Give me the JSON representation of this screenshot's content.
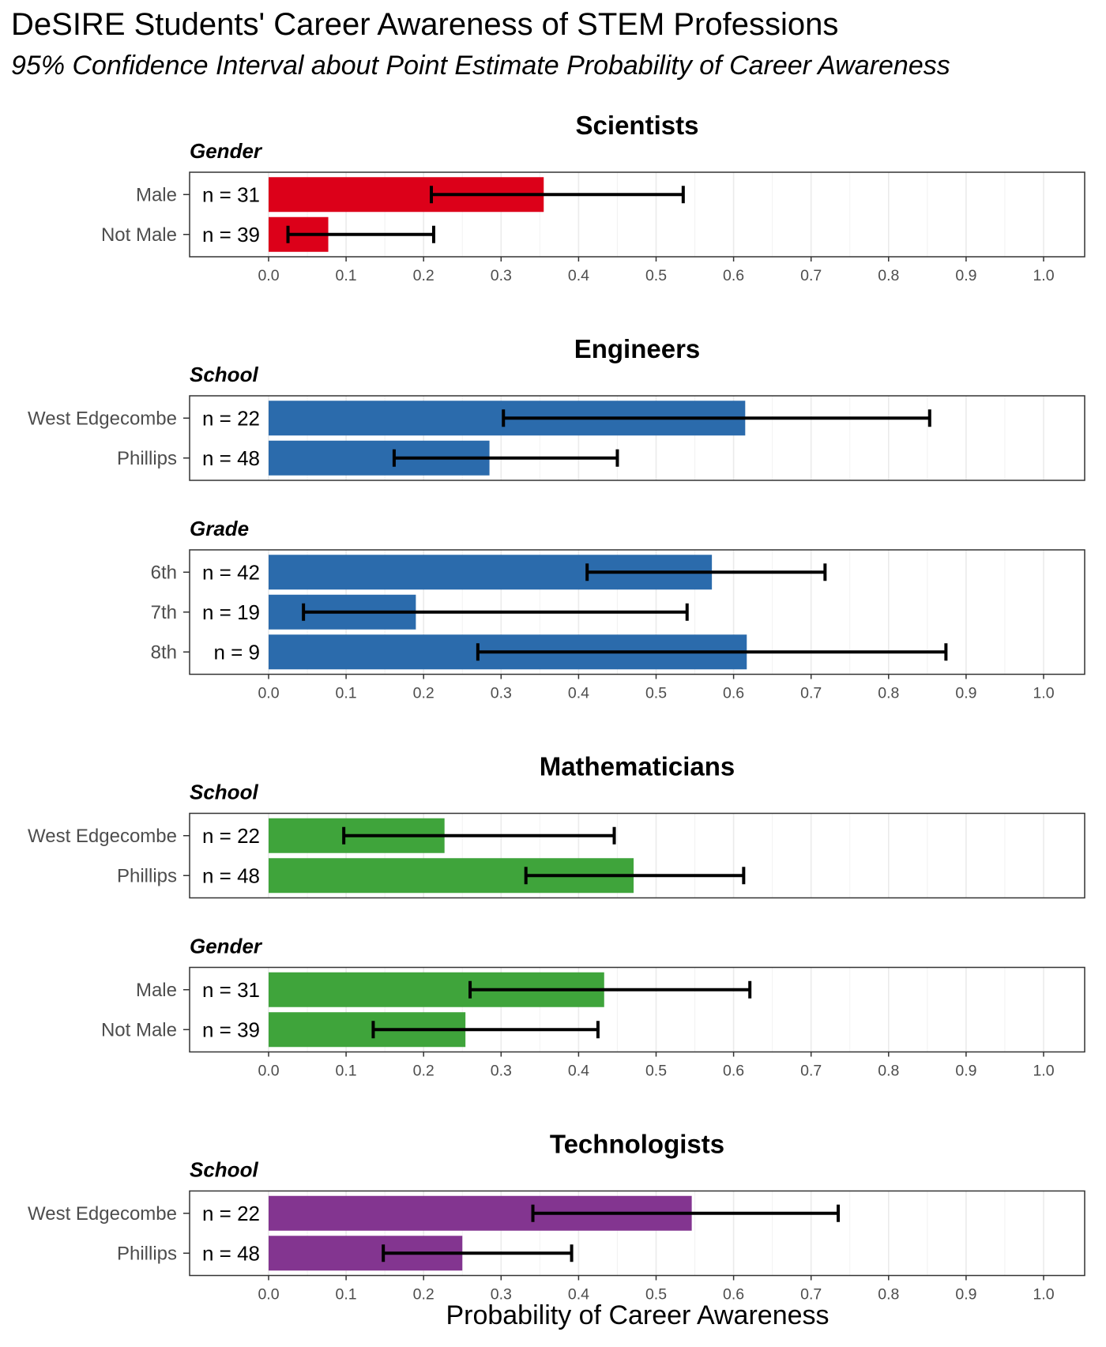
{
  "chart_data": {
    "type": "bar",
    "title": "DeSIRE Students' Career Awareness of STEM Professions",
    "subtitle": "95% Confidence Interval about Point Estimate Probability of Career Awareness",
    "xlabel": "Probability of Career Awareness",
    "xlim": [
      0,
      1.0
    ],
    "xticks": [
      "0.0",
      "0.1",
      "0.2",
      "0.3",
      "0.4",
      "0.5",
      "0.6",
      "0.7",
      "0.8",
      "0.9",
      "1.0"
    ],
    "grid": true,
    "orientation": "horizontal",
    "error_bars": "95% confidence interval",
    "sections": [
      {
        "title": "Scientists",
        "color": "#DC0019",
        "facets": [
          {
            "title": "Gender",
            "rows": [
              {
                "category": "Male",
                "n_label": "n = 31",
                "value": 0.355,
                "ci_low": 0.21,
                "ci_high": 0.535
              },
              {
                "category": "Not Male",
                "n_label": "n = 39",
                "value": 0.077,
                "ci_low": 0.025,
                "ci_high": 0.213
              }
            ]
          }
        ]
      },
      {
        "title": "Engineers",
        "color": "#2B6BAC",
        "facets": [
          {
            "title": "School",
            "rows": [
              {
                "category": "West Edgecombe",
                "n_label": "n = 22",
                "value": 0.615,
                "ci_low": 0.303,
                "ci_high": 0.853
              },
              {
                "category": "Phillips",
                "n_label": "n = 48",
                "value": 0.285,
                "ci_low": 0.162,
                "ci_high": 0.45
              }
            ]
          },
          {
            "title": "Grade",
            "rows": [
              {
                "category": "6th",
                "n_label": "n = 42",
                "value": 0.572,
                "ci_low": 0.411,
                "ci_high": 0.718
              },
              {
                "category": "7th",
                "n_label": "n = 19",
                "value": 0.19,
                "ci_low": 0.045,
                "ci_high": 0.54
              },
              {
                "category": "8th",
                "n_label": "n = 9",
                "value": 0.617,
                "ci_low": 0.27,
                "ci_high": 0.874
              }
            ]
          }
        ]
      },
      {
        "title": "Mathematicians",
        "color": "#3FA43B",
        "facets": [
          {
            "title": "School",
            "rows": [
              {
                "category": "West Edgecombe",
                "n_label": "n = 22",
                "value": 0.227,
                "ci_low": 0.097,
                "ci_high": 0.446
              },
              {
                "category": "Phillips",
                "n_label": "n = 48",
                "value": 0.471,
                "ci_low": 0.332,
                "ci_high": 0.613
              }
            ]
          },
          {
            "title": "Gender",
            "rows": [
              {
                "category": "Male",
                "n_label": "n = 31",
                "value": 0.433,
                "ci_low": 0.26,
                "ci_high": 0.621
              },
              {
                "category": "Not Male",
                "n_label": "n = 39",
                "value": 0.254,
                "ci_low": 0.135,
                "ci_high": 0.425
              }
            ]
          }
        ]
      },
      {
        "title": "Technologists",
        "color": "#833590",
        "facets": [
          {
            "title": "School",
            "rows": [
              {
                "category": "West Edgecombe",
                "n_label": "n = 22",
                "value": 0.546,
                "ci_low": 0.341,
                "ci_high": 0.735
              },
              {
                "category": "Phillips",
                "n_label": "n = 48",
                "value": 0.25,
                "ci_low": 0.148,
                "ci_high": 0.391
              }
            ]
          }
        ]
      }
    ]
  }
}
